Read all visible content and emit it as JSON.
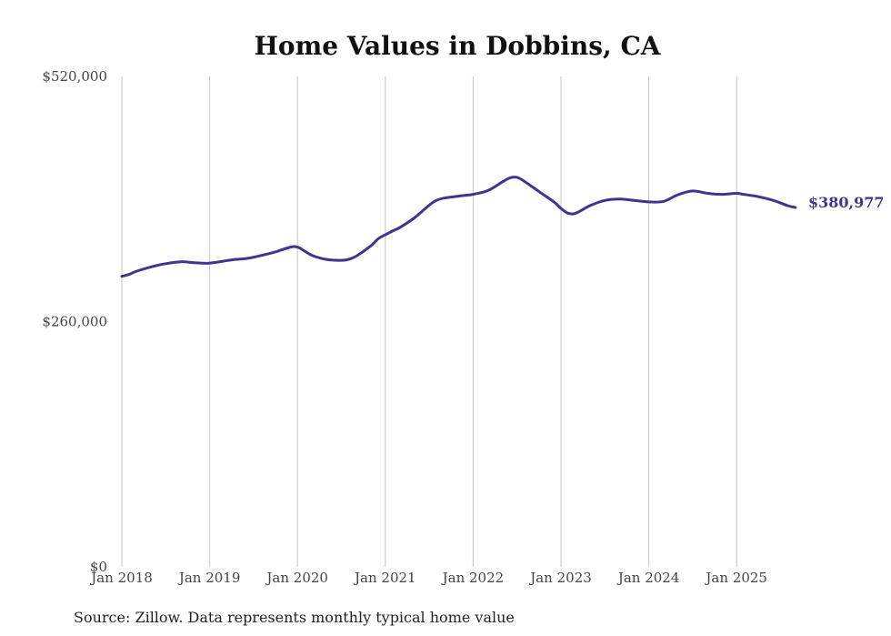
{
  "colors": {
    "line": "#3f3590",
    "grid": "#c4c4c4",
    "text": "#444444"
  },
  "source_note": "Source: Zillow. Data represents monthly typical home value",
  "chart_data": {
    "type": "line",
    "title": "Home Values in Dobbins, CA",
    "xlabel": "",
    "ylabel": "",
    "ylim": [
      0,
      520000
    ],
    "yticks": [
      {
        "value": 0,
        "label": "$0"
      },
      {
        "value": 260000,
        "label": "$260,000"
      },
      {
        "value": 520000,
        "label": "$520,000"
      }
    ],
    "xlim": [
      2018.0,
      2025.67
    ],
    "xticks": [
      {
        "value": 2018,
        "label": "Jan 2018"
      },
      {
        "value": 2019,
        "label": "Jan 2019"
      },
      {
        "value": 2020,
        "label": "Jan 2020"
      },
      {
        "value": 2021,
        "label": "Jan 2021"
      },
      {
        "value": 2022,
        "label": "Jan 2022"
      },
      {
        "value": 2023,
        "label": "Jan 2023"
      },
      {
        "value": 2024,
        "label": "Jan 2024"
      },
      {
        "value": 2025,
        "label": "Jan 2025"
      }
    ],
    "grid": "vertical",
    "end_label": "$380,977",
    "series": [
      {
        "name": "Typical home value",
        "x": [
          2018.0,
          2018.08,
          2018.17,
          2018.33,
          2018.5,
          2018.67,
          2018.83,
          2019.0,
          2019.25,
          2019.42,
          2019.58,
          2019.75,
          2019.92,
          2020.0,
          2020.08,
          2020.17,
          2020.33,
          2020.5,
          2020.58,
          2020.67,
          2020.83,
          2020.92,
          2021.0,
          2021.08,
          2021.17,
          2021.33,
          2021.5,
          2021.58,
          2021.67,
          2021.83,
          2021.92,
          2022.0,
          2022.17,
          2022.33,
          2022.42,
          2022.5,
          2022.58,
          2022.75,
          2022.92,
          2023.0,
          2023.08,
          2023.17,
          2023.33,
          2023.5,
          2023.67,
          2023.83,
          2024.0,
          2024.17,
          2024.33,
          2024.5,
          2024.67,
          2024.83,
          2025.0,
          2025.08,
          2025.25,
          2025.42,
          2025.58,
          2025.67
        ],
        "values": [
          308000,
          310000,
          313500,
          318000,
          321500,
          323500,
          322500,
          322000,
          325500,
          327000,
          330000,
          334000,
          339000,
          339000,
          335000,
          330000,
          326000,
          325000,
          326000,
          329500,
          340000,
          348000,
          352000,
          356000,
          360000,
          370000,
          383500,
          388500,
          391000,
          393000,
          394000,
          395000,
          399000,
          408000,
          412500,
          413000,
          409000,
          398000,
          387000,
          380000,
          375000,
          375000,
          383000,
          388500,
          390000,
          388500,
          387000,
          387500,
          394500,
          398500,
          396000,
          395000,
          396000,
          395000,
          392500,
          388500,
          383000,
          380977
        ]
      }
    ]
  }
}
